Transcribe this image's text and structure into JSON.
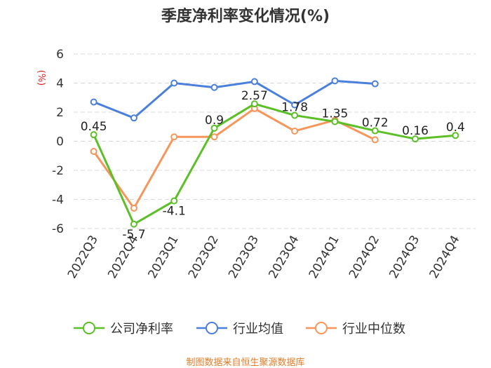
{
  "chart_data": {
    "type": "line",
    "title": "季度净利率变化情况(%)",
    "unit_label": "(%)",
    "categories": [
      "2022Q3",
      "2022Q4",
      "2023Q1",
      "2023Q2",
      "2023Q3",
      "2023Q4",
      "2024Q1",
      "2024Q2",
      "2024Q3",
      "2024Q4"
    ],
    "ylim": [
      -6,
      6
    ],
    "yticks": [
      6,
      4,
      2,
      0,
      -2,
      -4,
      -6
    ],
    "grid": true,
    "legend_position": "bottom",
    "series": [
      {
        "name": "公司净利率",
        "color": "#5ac026",
        "values": [
          0.45,
          -5.7,
          -4.1,
          0.9,
          2.57,
          1.78,
          1.35,
          0.72,
          0.16,
          0.4
        ],
        "labels": [
          "0.45",
          "-5.7",
          "-4.1",
          "0.9",
          "2.57",
          "1.78",
          "1.35",
          "0.72",
          "0.16",
          "0.4"
        ]
      },
      {
        "name": "行业均值",
        "color": "#4a7fdc",
        "values": [
          2.7,
          1.6,
          4.0,
          3.7,
          4.1,
          2.5,
          4.15,
          3.95,
          null,
          null
        ]
      },
      {
        "name": "行业中位数",
        "color": "#f7955a",
        "values": [
          -0.7,
          -4.6,
          0.3,
          0.3,
          2.25,
          0.7,
          1.45,
          0.1,
          null,
          null
        ]
      }
    ],
    "source": "制图数据来自恒生聚源数据库"
  }
}
